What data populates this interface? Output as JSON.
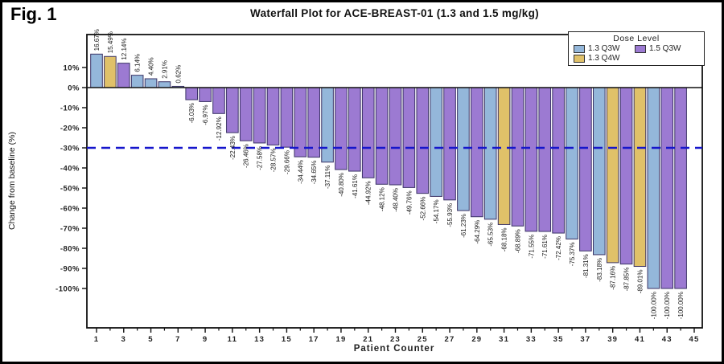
{
  "figure": {
    "label": "Fig. 1"
  },
  "chart_data": {
    "type": "bar",
    "title": "Waterfall Plot for ACE-BREAST-01 (1.3 and 1.5 mg/kg)",
    "xlabel": "Patient Counter",
    "ylabel": "Change from baseline (%)",
    "ylim": [
      -100,
      10
    ],
    "yticks": {
      "values": [
        10,
        0,
        -10,
        -20,
        -30,
        -40,
        -50,
        -60,
        -70,
        -80,
        -90,
        -100
      ],
      "labels": [
        "10%",
        "0%",
        "-10%",
        "-20%",
        "-30%",
        "-40%",
        "-50%",
        "-60%",
        "-70%",
        "-80%",
        "-90%",
        "-100%"
      ]
    },
    "xticks": [
      1,
      3,
      5,
      7,
      9,
      11,
      13,
      15,
      17,
      19,
      21,
      23,
      25,
      27,
      29,
      31,
      33,
      35,
      37,
      39,
      41,
      43,
      45
    ],
    "grid": false,
    "reference_line": {
      "y": -30,
      "style": "dashed",
      "color": "#1616cc"
    },
    "legend": {
      "title": "Dose Level",
      "position": "top-right",
      "entries": [
        {
          "label": "1.3 Q3W",
          "color": "#94b7da"
        },
        {
          "label": "1.5 Q3W",
          "color": "#9c7ad2"
        },
        {
          "label": "1.3 Q4W",
          "color": "#e0c169"
        }
      ]
    },
    "colors": {
      "bar_outline": "#3b3366",
      "axis": "#111111"
    },
    "bars": [
      {
        "patient": 1,
        "value": 16.67,
        "label": "16.67%",
        "dose": "1.3 Q3W"
      },
      {
        "patient": 2,
        "value": 15.49,
        "label": "15.49%",
        "dose": "1.3 Q4W"
      },
      {
        "patient": 3,
        "value": 12.14,
        "label": "12.14%",
        "dose": "1.5 Q3W"
      },
      {
        "patient": 4,
        "value": 6.14,
        "label": "6.14%",
        "dose": "1.3 Q3W"
      },
      {
        "patient": 5,
        "value": 4.4,
        "label": "4.40%",
        "dose": "1.3 Q3W"
      },
      {
        "patient": 6,
        "value": 2.91,
        "label": "2.91%",
        "dose": "1.3 Q3W"
      },
      {
        "patient": 7,
        "value": 0.62,
        "label": "0.62%",
        "dose": "1.3 Q3W"
      },
      {
        "patient": 8,
        "value": -6.03,
        "label": "-6.03%",
        "dose": "1.5 Q3W"
      },
      {
        "patient": 9,
        "value": -6.97,
        "label": "-6.97%",
        "dose": "1.5 Q3W"
      },
      {
        "patient": 10,
        "value": -12.92,
        "label": "-12.92%",
        "dose": "1.5 Q3W"
      },
      {
        "patient": 11,
        "value": -22.43,
        "label": "-22.43%",
        "dose": "1.5 Q3W"
      },
      {
        "patient": 12,
        "value": -26.46,
        "label": "-26.46%",
        "dose": "1.5 Q3W"
      },
      {
        "patient": 13,
        "value": -27.58,
        "label": "-27.58%",
        "dose": "1.5 Q3W"
      },
      {
        "patient": 14,
        "value": -28.57,
        "label": "-28.57%",
        "dose": "1.5 Q3W"
      },
      {
        "patient": 15,
        "value": -29.66,
        "label": "-29.66%",
        "dose": "1.5 Q3W"
      },
      {
        "patient": 16,
        "value": -34.44,
        "label": "-34.44%",
        "dose": "1.5 Q3W"
      },
      {
        "patient": 17,
        "value": -34.65,
        "label": "-34.65%",
        "dose": "1.5 Q3W"
      },
      {
        "patient": 18,
        "value": -37.11,
        "label": "-37.11%",
        "dose": "1.3 Q3W"
      },
      {
        "patient": 19,
        "value": -40.8,
        "label": "-40.80%",
        "dose": "1.5 Q3W"
      },
      {
        "patient": 20,
        "value": -41.61,
        "label": "-41.61%",
        "dose": "1.5 Q3W"
      },
      {
        "patient": 21,
        "value": -44.92,
        "label": "-44.92%",
        "dose": "1.5 Q3W"
      },
      {
        "patient": 22,
        "value": -48.12,
        "label": "-48.12%",
        "dose": "1.5 Q3W"
      },
      {
        "patient": 23,
        "value": -48.4,
        "label": "-48.40%",
        "dose": "1.5 Q3W"
      },
      {
        "patient": 24,
        "value": -49.76,
        "label": "-49.76%",
        "dose": "1.5 Q3W"
      },
      {
        "patient": 25,
        "value": -52.66,
        "label": "-52.66%",
        "dose": "1.5 Q3W"
      },
      {
        "patient": 26,
        "value": -54.17,
        "label": "-54.17%",
        "dose": "1.3 Q3W"
      },
      {
        "patient": 27,
        "value": -55.93,
        "label": "-55.93%",
        "dose": "1.5 Q3W"
      },
      {
        "patient": 28,
        "value": -61.23,
        "label": "-61.23%",
        "dose": "1.3 Q3W"
      },
      {
        "patient": 29,
        "value": -64.29,
        "label": "-64.29%",
        "dose": "1.5 Q3W"
      },
      {
        "patient": 30,
        "value": -65.53,
        "label": "-65.53%",
        "dose": "1.3 Q3W"
      },
      {
        "patient": 31,
        "value": -68.18,
        "label": "-68.18%",
        "dose": "1.3 Q4W"
      },
      {
        "patient": 32,
        "value": -68.89,
        "label": "-68.89%",
        "dose": "1.5 Q3W"
      },
      {
        "patient": 33,
        "value": -71.55,
        "label": "-71.55%",
        "dose": "1.5 Q3W"
      },
      {
        "patient": 34,
        "value": -71.61,
        "label": "-71.61%",
        "dose": "1.5 Q3W"
      },
      {
        "patient": 35,
        "value": -72.42,
        "label": "-72.42%",
        "dose": "1.5 Q3W"
      },
      {
        "patient": 36,
        "value": -75.37,
        "label": "-75.37%",
        "dose": "1.3 Q3W"
      },
      {
        "patient": 37,
        "value": -81.31,
        "label": "-81.31%",
        "dose": "1.5 Q3W"
      },
      {
        "patient": 38,
        "value": -83.18,
        "label": "-83.18%",
        "dose": "1.3 Q3W"
      },
      {
        "patient": 39,
        "value": -87.16,
        "label": "-87.16%",
        "dose": "1.3 Q4W"
      },
      {
        "patient": 40,
        "value": -87.85,
        "label": "-87.85%",
        "dose": "1.5 Q3W"
      },
      {
        "patient": 41,
        "value": -89.01,
        "label": "-89.01%",
        "dose": "1.3 Q4W"
      },
      {
        "patient": 42,
        "value": -100.0,
        "label": "-100.00%",
        "dose": "1.3 Q3W"
      },
      {
        "patient": 43,
        "value": -100.0,
        "label": "-100.00%",
        "dose": "1.5 Q3W"
      },
      {
        "patient": 44,
        "value": -100.0,
        "label": "-100.00%",
        "dose": "1.5 Q3W"
      }
    ]
  }
}
